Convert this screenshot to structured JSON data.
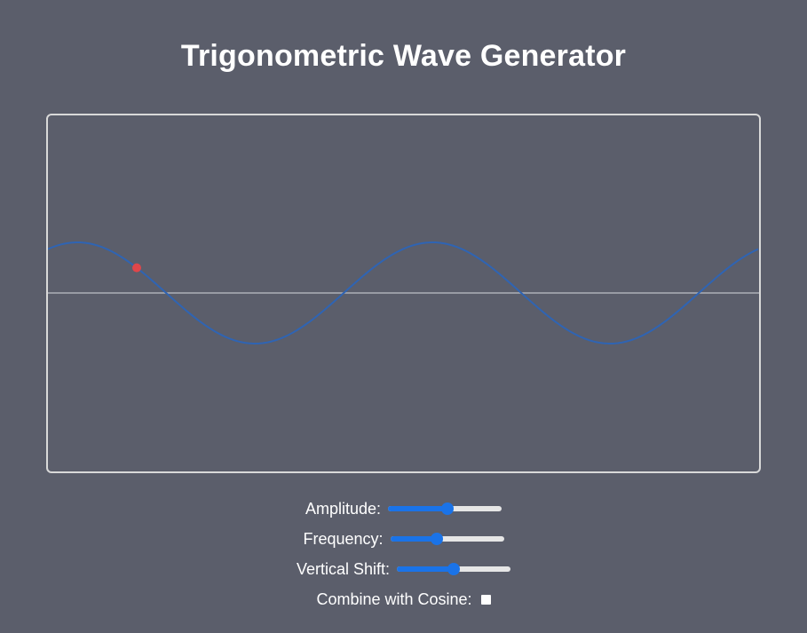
{
  "title": "Trigonometric Wave Generator",
  "colors": {
    "background": "#5b5e6b",
    "wave": "#2f64b3",
    "axis": "#aeb0b8",
    "marker": "#e0464a",
    "slider_accent": "#1a73e8"
  },
  "controls": {
    "amplitude": {
      "label": "Amplitude:",
      "value": 0.53
    },
    "frequency": {
      "label": "Frequency:",
      "value": 0.4
    },
    "vertical_shift": {
      "label": "Vertical Shift:",
      "value": 0.5
    },
    "combine_cosine": {
      "label": "Combine with Cosine:",
      "checked": false
    }
  }
}
